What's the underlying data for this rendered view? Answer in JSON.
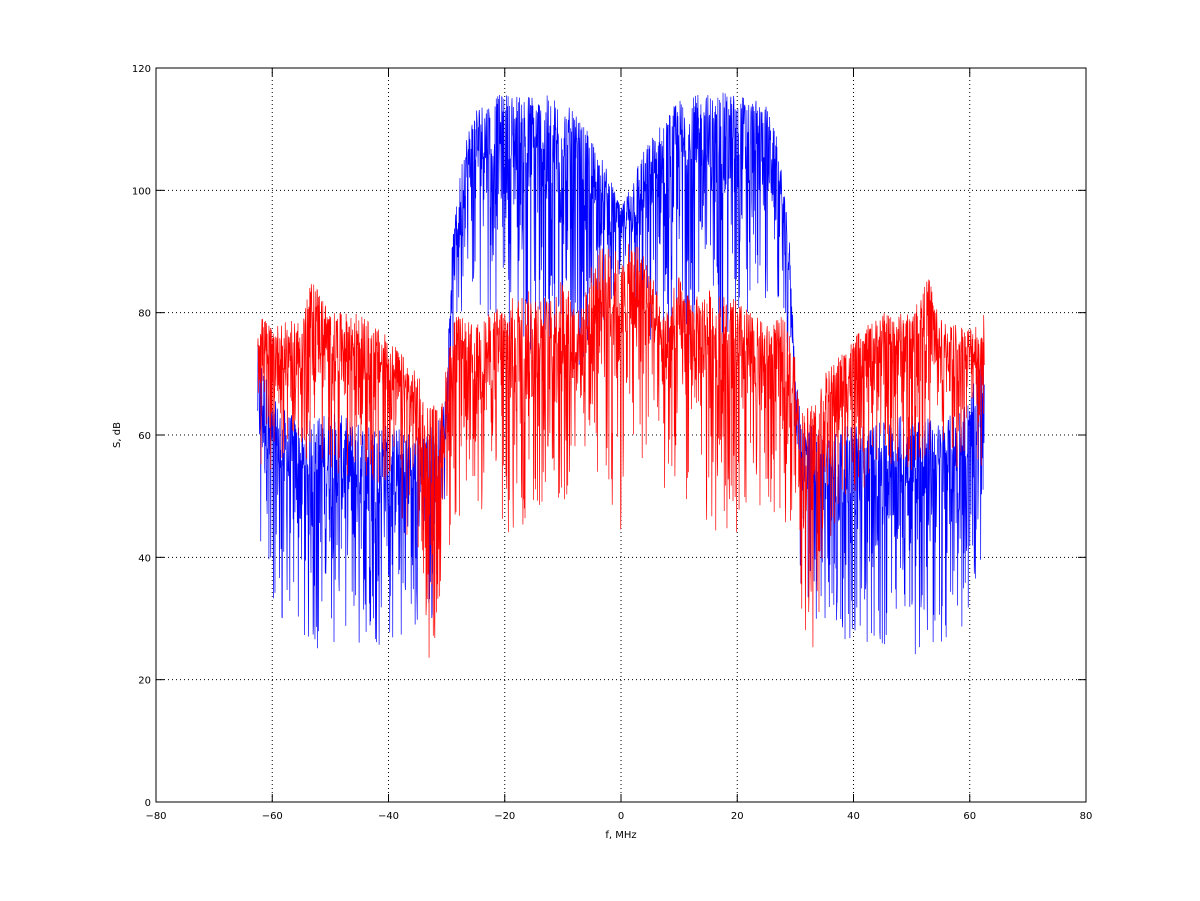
{
  "chart_data": {
    "type": "line",
    "title": "",
    "xlabel": "f, MHz",
    "ylabel": "S, dB",
    "xlim": [
      -80,
      80
    ],
    "ylim": [
      0,
      120
    ],
    "xticks": [
      -80,
      -60,
      -40,
      -20,
      0,
      20,
      40,
      60,
      80
    ],
    "yticks": [
      0,
      20,
      40,
      60,
      80,
      100,
      120
    ],
    "grid": true,
    "x_range_data": [
      -62.5,
      62.5
    ],
    "series": [
      {
        "color": "#0000ff",
        "points": [
          {
            "f": -62.5,
            "min": 37,
            "max": 75
          },
          {
            "f": -60,
            "min": 30,
            "max": 66
          },
          {
            "f": -55,
            "min": 25,
            "max": 62
          },
          {
            "f": -50,
            "min": 24,
            "max": 64
          },
          {
            "f": -45,
            "min": 24,
            "max": 62
          },
          {
            "f": -40,
            "min": 26,
            "max": 62
          },
          {
            "f": -35,
            "min": 28,
            "max": 60
          },
          {
            "f": -31,
            "min": 30,
            "max": 63
          },
          {
            "f": -30,
            "min": 60,
            "max": 70
          },
          {
            "f": -29,
            "min": 72,
            "max": 92
          },
          {
            "f": -27,
            "min": 80,
            "max": 108
          },
          {
            "f": -25,
            "min": 82,
            "max": 114
          },
          {
            "f": -20,
            "min": 76,
            "max": 116
          },
          {
            "f": -15,
            "min": 72,
            "max": 116
          },
          {
            "f": -10,
            "min": 70,
            "max": 115
          },
          {
            "f": -6,
            "min": 72,
            "max": 110
          },
          {
            "f": -3,
            "min": 78,
            "max": 105
          },
          {
            "f": 0,
            "min": 85,
            "max": 97
          },
          {
            "f": 3,
            "min": 78,
            "max": 105
          },
          {
            "f": 6,
            "min": 72,
            "max": 110
          },
          {
            "f": 10,
            "min": 70,
            "max": 115
          },
          {
            "f": 15,
            "min": 72,
            "max": 116
          },
          {
            "f": 20,
            "min": 76,
            "max": 116
          },
          {
            "f": 25,
            "min": 82,
            "max": 114
          },
          {
            "f": 27,
            "min": 80,
            "max": 108
          },
          {
            "f": 29,
            "min": 72,
            "max": 92
          },
          {
            "f": 30,
            "min": 60,
            "max": 70
          },
          {
            "f": 31,
            "min": 30,
            "max": 63
          },
          {
            "f": 35,
            "min": 28,
            "max": 60
          },
          {
            "f": 40,
            "min": 26,
            "max": 62
          },
          {
            "f": 45,
            "min": 24,
            "max": 62
          },
          {
            "f": 50,
            "min": 24,
            "max": 64
          },
          {
            "f": 55,
            "min": 25,
            "max": 62
          },
          {
            "f": 60,
            "min": 30,
            "max": 66
          },
          {
            "f": 62.5,
            "min": 37,
            "max": 75
          }
        ]
      },
      {
        "color": "#ff0000",
        "points": [
          {
            "f": -62.5,
            "min": 55,
            "max": 80
          },
          {
            "f": -60,
            "min": 54,
            "max": 78
          },
          {
            "f": -55,
            "min": 54,
            "max": 79
          },
          {
            "f": -53,
            "min": 55,
            "max": 86
          },
          {
            "f": -50,
            "min": 54,
            "max": 80
          },
          {
            "f": -45,
            "min": 53,
            "max": 80
          },
          {
            "f": -40,
            "min": 50,
            "max": 76
          },
          {
            "f": -35,
            "min": 40,
            "max": 70
          },
          {
            "f": -33,
            "min": 20,
            "max": 66
          },
          {
            "f": -31,
            "min": 32,
            "max": 64
          },
          {
            "f": -29,
            "min": 45,
            "max": 80
          },
          {
            "f": -25,
            "min": 48,
            "max": 78
          },
          {
            "f": -20,
            "min": 42,
            "max": 82
          },
          {
            "f": -15,
            "min": 45,
            "max": 84
          },
          {
            "f": -12,
            "min": 50,
            "max": 82
          },
          {
            "f": -10,
            "min": 46,
            "max": 86
          },
          {
            "f": -7,
            "min": 52,
            "max": 80
          },
          {
            "f": -5,
            "min": 55,
            "max": 88
          },
          {
            "f": -2,
            "min": 50,
            "max": 93
          },
          {
            "f": 0,
            "min": 43,
            "max": 88
          },
          {
            "f": 2,
            "min": 50,
            "max": 93
          },
          {
            "f": 5,
            "min": 55,
            "max": 88
          },
          {
            "f": 7,
            "min": 52,
            "max": 80
          },
          {
            "f": 10,
            "min": 46,
            "max": 86
          },
          {
            "f": 12,
            "min": 50,
            "max": 82
          },
          {
            "f": 15,
            "min": 45,
            "max": 84
          },
          {
            "f": 20,
            "min": 42,
            "max": 82
          },
          {
            "f": 25,
            "min": 48,
            "max": 78
          },
          {
            "f": 29,
            "min": 45,
            "max": 80
          },
          {
            "f": 31,
            "min": 32,
            "max": 64
          },
          {
            "f": 33,
            "min": 20,
            "max": 66
          },
          {
            "f": 35,
            "min": 40,
            "max": 70
          },
          {
            "f": 40,
            "min": 50,
            "max": 76
          },
          {
            "f": 45,
            "min": 53,
            "max": 80
          },
          {
            "f": 50,
            "min": 54,
            "max": 80
          },
          {
            "f": 53,
            "min": 55,
            "max": 86
          },
          {
            "f": 55,
            "min": 54,
            "max": 79
          },
          {
            "f": 60,
            "min": 54,
            "max": 78
          },
          {
            "f": 62.5,
            "min": 55,
            "max": 80
          }
        ]
      }
    ]
  }
}
